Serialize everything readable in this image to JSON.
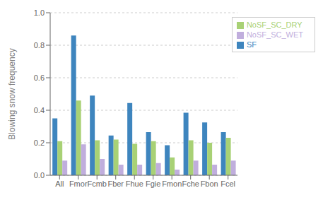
{
  "chart_data": {
    "type": "bar",
    "categories": [
      "All",
      "Fmor",
      "Fcmb",
      "Fber",
      "Fhue",
      "Fgie",
      "Fmon",
      "Fche",
      "Fbon",
      "Fcel"
    ],
    "series": [
      {
        "name": "SF",
        "color": "#3e85be",
        "values": [
          0.35,
          0.86,
          0.49,
          0.245,
          0.445,
          0.265,
          0.185,
          0.385,
          0.325,
          0.265
        ]
      },
      {
        "name": "NoSF_SC_DRY",
        "color": "#a8d175",
        "values": [
          0.21,
          0.46,
          0.215,
          0.22,
          0.193,
          0.21,
          0.11,
          0.215,
          0.2,
          0.23
        ]
      },
      {
        "name": "NoSF_SC_WET",
        "color": "#c0aedd",
        "values": [
          0.09,
          0.19,
          0.1,
          0.065,
          0.065,
          0.075,
          0.035,
          0.09,
          0.065,
          0.09
        ]
      }
    ],
    "ylabel": "Blowing snow frequency",
    "ylim": [
      0.0,
      1.0
    ],
    "yticks": [
      {
        "value": 0,
        "label": "0.0"
      },
      0.2,
      0.4,
      0.6,
      0.8,
      {
        "value": 1,
        "label": "1.0"
      }
    ],
    "grid": true,
    "legend": "upper right"
  }
}
